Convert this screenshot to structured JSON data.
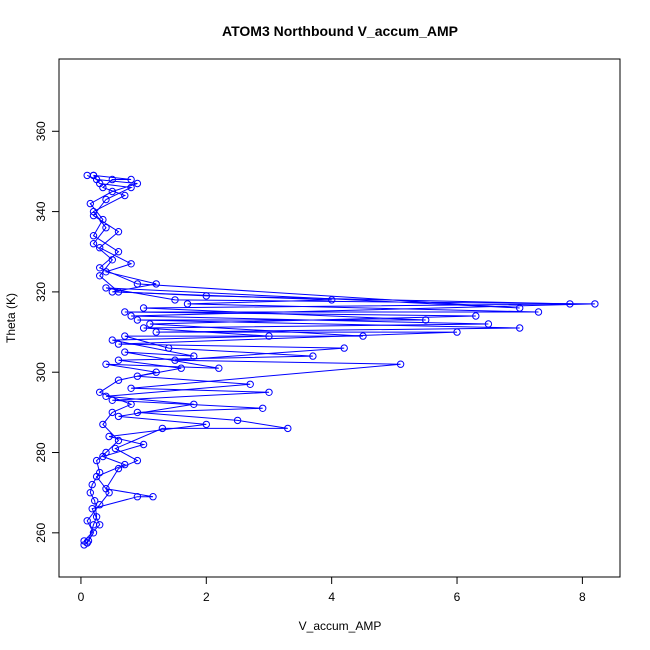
{
  "chart_data": {
    "type": "scatter",
    "title": "ATOM3 Northbound V_accum_AMP",
    "xlabel": "V_accum_AMP",
    "ylabel": "Theta (K)",
    "xlim": [
      -0.35,
      8.6
    ],
    "ylim": [
      249,
      378
    ],
    "x_ticks": [
      "0",
      "2",
      "4",
      "6",
      "8"
    ],
    "y_ticks": [
      "260",
      "280",
      "300",
      "320",
      "340",
      "360"
    ],
    "grid": false,
    "legend": "none",
    "color": "#0000ff",
    "marker": "open-circle",
    "connected_with_lines": true,
    "series": [
      {
        "values": [
          [
            0.05,
            257
          ],
          [
            0.1,
            257.5
          ],
          [
            0.12,
            258
          ],
          [
            0.2,
            262
          ],
          [
            0.25,
            264
          ],
          [
            0.22,
            268
          ],
          [
            0.15,
            270
          ],
          [
            0.18,
            272
          ],
          [
            0.3,
            275
          ],
          [
            0.25,
            278
          ],
          [
            0.4,
            280
          ],
          [
            0.6,
            283
          ],
          [
            0.35,
            287
          ],
          [
            0.5,
            290
          ],
          [
            0.8,
            292
          ],
          [
            0.3,
            295
          ],
          [
            0.6,
            298
          ],
          [
            1.2,
            300
          ],
          [
            0.4,
            302
          ],
          [
            2.2,
            301
          ],
          [
            0.7,
            305
          ],
          [
            1.8,
            304
          ],
          [
            0.5,
            308
          ],
          [
            3.0,
            309
          ],
          [
            1.0,
            311
          ],
          [
            6.5,
            312
          ],
          [
            0.8,
            314
          ],
          [
            8.2,
            317
          ],
          [
            1.5,
            318
          ],
          [
            0.4,
            321
          ],
          [
            7.0,
            316
          ],
          [
            0.9,
            322
          ],
          [
            0.3,
            326
          ],
          [
            0.6,
            330
          ],
          [
            0.2,
            334
          ],
          [
            0.35,
            338
          ],
          [
            0.15,
            342
          ],
          [
            0.5,
            345
          ],
          [
            0.9,
            347
          ],
          [
            0.25,
            348
          ],
          [
            0.1,
            349
          ]
        ]
      },
      {
        "values": [
          [
            0.05,
            258
          ],
          [
            0.3,
            262
          ],
          [
            0.18,
            266
          ],
          [
            0.9,
            269
          ],
          [
            1.15,
            269
          ],
          [
            0.4,
            271
          ],
          [
            0.6,
            276
          ],
          [
            0.9,
            278
          ],
          [
            0.55,
            281
          ],
          [
            1.3,
            286
          ],
          [
            3.3,
            286
          ],
          [
            2.5,
            288
          ],
          [
            0.9,
            290
          ],
          [
            2.9,
            291
          ],
          [
            0.5,
            293
          ],
          [
            3.0,
            295
          ],
          [
            0.8,
            296
          ],
          [
            5.1,
            302
          ],
          [
            1.5,
            303
          ],
          [
            4.2,
            306
          ],
          [
            0.6,
            307
          ],
          [
            6.0,
            310
          ],
          [
            1.2,
            310
          ],
          [
            7.0,
            311
          ],
          [
            0.9,
            313
          ],
          [
            5.5,
            313
          ],
          [
            1.0,
            316
          ],
          [
            7.8,
            317
          ],
          [
            2.0,
            319
          ],
          [
            0.6,
            320
          ],
          [
            0.3,
            324
          ],
          [
            0.5,
            328
          ],
          [
            0.2,
            332
          ],
          [
            0.4,
            336
          ],
          [
            0.2,
            340
          ],
          [
            0.7,
            344
          ],
          [
            0.35,
            346
          ],
          [
            0.5,
            348
          ],
          [
            0.8,
            348
          ],
          [
            0.2,
            349
          ]
        ]
      },
      {
        "values": [
          [
            0.1,
            257.5
          ],
          [
            0.2,
            260
          ],
          [
            0.1,
            263
          ],
          [
            0.3,
            267
          ],
          [
            0.45,
            270
          ],
          [
            0.25,
            274
          ],
          [
            0.7,
            277
          ],
          [
            0.35,
            279
          ],
          [
            1.0,
            282
          ],
          [
            0.45,
            284
          ],
          [
            2.0,
            287
          ],
          [
            0.6,
            289
          ],
          [
            1.8,
            292
          ],
          [
            0.4,
            294
          ],
          [
            2.7,
            297
          ],
          [
            0.9,
            299
          ],
          [
            1.6,
            301
          ],
          [
            0.6,
            303
          ],
          [
            3.7,
            304
          ],
          [
            1.4,
            306
          ],
          [
            0.7,
            309
          ],
          [
            4.5,
            309
          ],
          [
            1.1,
            312
          ],
          [
            6.3,
            314
          ],
          [
            0.7,
            315
          ],
          [
            7.3,
            315
          ],
          [
            1.7,
            317
          ],
          [
            4.0,
            318
          ],
          [
            0.5,
            320
          ],
          [
            1.2,
            322
          ],
          [
            0.4,
            325
          ],
          [
            0.8,
            327
          ],
          [
            0.3,
            331
          ],
          [
            0.6,
            335
          ],
          [
            0.2,
            339
          ],
          [
            0.4,
            343
          ],
          [
            0.8,
            346
          ],
          [
            0.3,
            347
          ],
          [
            0.2,
            349
          ]
        ]
      }
    ]
  }
}
